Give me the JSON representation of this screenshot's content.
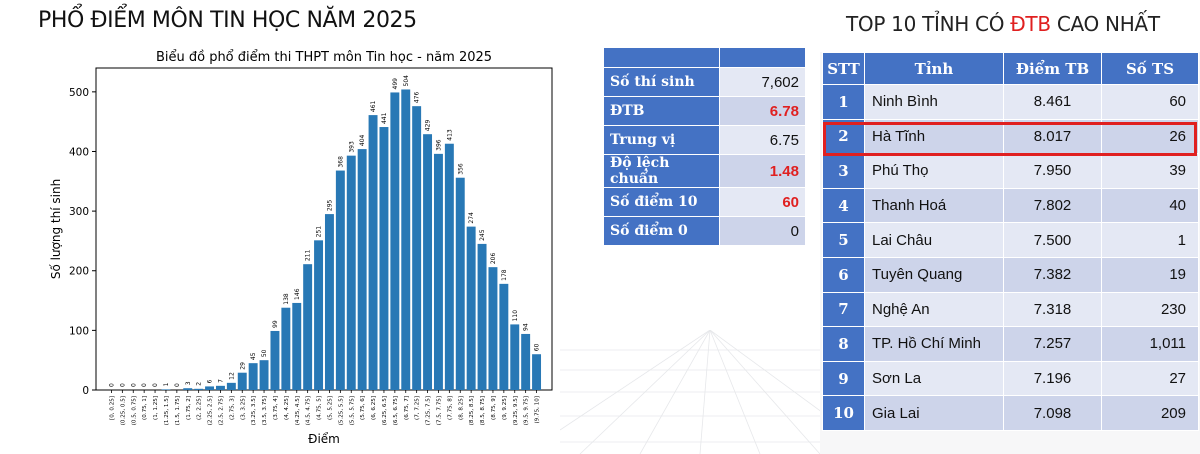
{
  "header": {
    "main_title": "PHỔ ĐIỂM MÔN TIN HỌC NĂM 2025",
    "top_title_pre": "TOP 10 TỈNH CÓ ",
    "top_title_hl": "ĐTB",
    "top_title_post": " CAO NHẤT"
  },
  "colors": {
    "bar": "#2878b5",
    "table_header": "#4472c4",
    "row_light": "#e4e8f4",
    "row_dark": "#cdd4ea",
    "highlight": "#e02020"
  },
  "stats": {
    "rows": [
      {
        "label": "Số thí sinh",
        "value": "7,602"
      },
      {
        "label": "ĐTB",
        "value": "6.78"
      },
      {
        "label": "Trung vị",
        "value": "6.75"
      },
      {
        "label": "Độ lệch chuẩn",
        "value": "1.48"
      },
      {
        "label": "Số điểm 10",
        "value": "60"
      },
      {
        "label": "Số điểm 0",
        "value": "0"
      }
    ]
  },
  "top10": {
    "headers": [
      "STT",
      "Tỉnh",
      "Điểm TB",
      "Số TS"
    ],
    "rows": [
      {
        "stt": "1",
        "province": "Ninh Bình",
        "score": "8.461",
        "count": "60"
      },
      {
        "stt": "2",
        "province": "Hà Tĩnh",
        "score": "8.017",
        "count": "26"
      },
      {
        "stt": "3",
        "province": "Phú Thọ",
        "score": "7.950",
        "count": "39"
      },
      {
        "stt": "4",
        "province": "Thanh Hoá",
        "score": "7.802",
        "count": "40"
      },
      {
        "stt": "5",
        "province": "Lai Châu",
        "score": "7.500",
        "count": "1"
      },
      {
        "stt": "6",
        "province": "Tuyên Quang",
        "score": "7.382",
        "count": "19"
      },
      {
        "stt": "7",
        "province": "Nghệ An",
        "score": "7.318",
        "count": "230"
      },
      {
        "stt": "8",
        "province": "TP. Hồ Chí Minh",
        "score": "7.257",
        "count": "1,011"
      },
      {
        "stt": "9",
        "province": "Sơn La",
        "score": "7.196",
        "count": "27"
      },
      {
        "stt": "10",
        "province": "Gia Lai",
        "score": "7.098",
        "count": "209"
      }
    ],
    "highlighted_row": 2
  },
  "chart_data": {
    "type": "bar",
    "title": "Biểu đồ phổ điểm thi THPT môn Tin học - năm 2025",
    "xlabel": "Điểm",
    "ylabel": "Số lượng thí sinh",
    "ylim": [
      0,
      540
    ],
    "yticks": [
      0,
      100,
      200,
      300,
      400,
      500
    ],
    "categories": [
      "[0, 0.25]",
      "(0.25, 0.5]",
      "(0.5, 0.75]",
      "(0.75, 1]",
      "(1, 1.25]",
      "(1.25, 1.5]",
      "(1.5, 1.75]",
      "(1.75, 2]",
      "(2, 2.25]",
      "(2.25, 2.5]",
      "(2.5, 2.75]",
      "(2.75, 3]",
      "(3, 3.25]",
      "(3.25, 3.5]",
      "(3.5, 3.75]",
      "(3.75, 4]",
      "(4, 4.25]",
      "(4.25, 4.5]",
      "(4.5, 4.75]",
      "(4.75, 5]",
      "(5, 5.25]",
      "(5.25, 5.5]",
      "(5.5, 5.75]",
      "(5.75, 6]",
      "(6, 6.25]",
      "(6.25, 6.5]",
      "(6.5, 6.75]",
      "(6.75, 7]",
      "(7, 7.25]",
      "(7.25, 7.5]",
      "(7.5, 7.75]",
      "(7.75, 8]",
      "(8, 8.25]",
      "(8.25, 8.5]",
      "(8.5, 8.75]",
      "(8.75, 9]",
      "(9, 9.25]",
      "(9.25, 9.5]",
      "(9.5, 9.75]",
      "(9.75, 10]"
    ],
    "values": [
      0,
      0,
      0,
      0,
      0,
      1,
      0,
      3,
      2,
      6,
      7,
      12,
      29,
      45,
      50,
      99,
      138,
      146,
      211,
      251,
      295,
      368,
      393,
      404,
      461,
      441,
      499,
      504,
      476,
      429,
      396,
      413,
      356,
      274,
      245,
      206,
      178,
      110,
      94,
      60
    ],
    "grid": false,
    "legend": "none"
  }
}
